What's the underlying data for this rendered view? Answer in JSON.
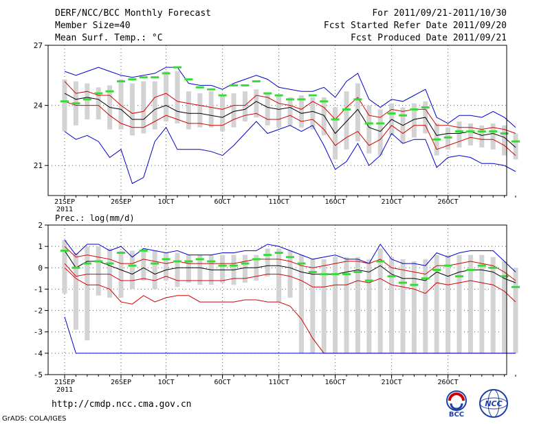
{
  "header": {
    "title": "DERF/NCC/BCC Monthly Forecast",
    "member_size": "Member Size=40",
    "variable": "Mean Surf. Temp.: °C",
    "period": "For 2011/09/21-2011/10/30",
    "started": "Fcst Started Refer Date 2011/09/20",
    "produced": "Fcst Produced Date 2011/09/21"
  },
  "footer": {
    "url": "http://cmdp.ncc.cma.gov.cn",
    "grads": "GrADS: COLA/IGES",
    "logo_bcc": "BCC",
    "logo_ncc": "NCC"
  },
  "colors": {
    "mean": "#000000",
    "spread": "#d40000",
    "range": "#0000cc",
    "box": "#d3d3d3",
    "median": "#33dd33"
  },
  "chart_data": [
    {
      "type": "line",
      "title": "Mean Surf. Temp.: °C",
      "ylim": [
        19.5,
        27
      ],
      "yticks": [
        21,
        24,
        27
      ],
      "x_ticks": [
        {
          "day": 0,
          "label": "21SEP",
          "sub": "2011"
        },
        {
          "day": 5,
          "label": "26SEP"
        },
        {
          "day": 9,
          "label": "1OCT"
        },
        {
          "day": 14,
          "label": "6OCT"
        },
        {
          "day": 19,
          "label": "11OCT"
        },
        {
          "day": 24,
          "label": "16OCT"
        },
        {
          "day": 29,
          "label": "21OCT"
        },
        {
          "day": 34,
          "label": "26OCT"
        }
      ],
      "series": [
        {
          "name": "max",
          "values": [
            25.7,
            25.5,
            25.7,
            25.9,
            25.7,
            25.5,
            25.4,
            25.5,
            25.6,
            25.9,
            25.9,
            25.1,
            25.0,
            25.0,
            24.8,
            25.1,
            25.3,
            25.5,
            25.3,
            24.9,
            24.8,
            24.7,
            24.7,
            24.9,
            24.4,
            25.2,
            25.6,
            24.3,
            23.9,
            24.3,
            24.2,
            24.5,
            24.8,
            23.4,
            23.1,
            23.5,
            23.5,
            23.4,
            23.7,
            23.4,
            22.9
          ]
        },
        {
          "name": "upper",
          "values": [
            25.2,
            24.6,
            24.7,
            24.5,
            24.5,
            24.0,
            23.6,
            23.7,
            24.4,
            24.6,
            24.2,
            24.1,
            24.0,
            23.9,
            23.8,
            24.0,
            24.0,
            24.5,
            24.4,
            24.1,
            24.0,
            23.8,
            24.2,
            23.9,
            23.3,
            23.9,
            24.4,
            23.5,
            23.4,
            23.8,
            23.7,
            23.8,
            23.8,
            23.0,
            23.0,
            22.9,
            22.9,
            22.8,
            22.9,
            22.8,
            22.6
          ]
        },
        {
          "name": "mean",
          "values": [
            24.6,
            24.3,
            24.4,
            24.3,
            23.9,
            23.8,
            23.3,
            23.3,
            23.8,
            24.0,
            23.7,
            23.6,
            23.6,
            23.5,
            23.4,
            23.7,
            23.8,
            24.2,
            23.9,
            23.8,
            23.9,
            23.6,
            23.7,
            23.5,
            22.6,
            23.2,
            23.8,
            22.9,
            22.7,
            23.3,
            23.0,
            23.3,
            23.4,
            22.5,
            22.6,
            22.6,
            22.7,
            22.5,
            22.6,
            22.4,
            21.9
          ]
        },
        {
          "name": "lower",
          "values": [
            24.2,
            24.0,
            24.0,
            24.0,
            23.5,
            23.1,
            22.9,
            22.9,
            23.2,
            23.5,
            23.3,
            23.1,
            23.1,
            23.0,
            23.0,
            23.3,
            23.5,
            23.6,
            23.3,
            23.3,
            23.5,
            23.2,
            23.3,
            22.8,
            22.0,
            22.4,
            22.7,
            22.0,
            22.3,
            23.0,
            22.6,
            23.0,
            23.0,
            21.8,
            22.0,
            22.2,
            22.4,
            22.3,
            22.3,
            22.0,
            21.5
          ]
        },
        {
          "name": "min",
          "values": [
            22.7,
            22.3,
            22.5,
            22.2,
            21.4,
            21.8,
            20.1,
            20.4,
            22.2,
            22.9,
            21.8,
            21.8,
            21.8,
            21.7,
            21.5,
            22.0,
            22.6,
            23.2,
            22.6,
            22.8,
            23.0,
            22.7,
            23.0,
            22.0,
            20.8,
            21.2,
            22.1,
            21.0,
            21.5,
            22.6,
            22.1,
            22.3,
            22.3,
            20.9,
            21.4,
            21.5,
            21.4,
            21.1,
            21.1,
            21.0,
            20.7
          ]
        }
      ],
      "box_low": [
        22.7,
        23.0,
        23.3,
        23.3,
        22.8,
        22.8,
        22.5,
        22.6,
        22.8,
        23.2,
        23.1,
        22.8,
        22.9,
        22.9,
        22.7,
        22.9,
        23.2,
        23.4,
        23.0,
        22.9,
        23.0,
        22.9,
        22.8,
        22.5,
        21.3,
        21.8,
        22.2,
        21.6,
        21.5,
        22.5,
        22.1,
        22.4,
        22.6,
        21.5,
        21.8,
        21.9,
        22.0,
        21.9,
        21.8,
        21.5,
        21.3
      ],
      "box_high": [
        25.3,
        25.2,
        25.1,
        24.9,
        25.0,
        25.3,
        25.1,
        25.2,
        25.2,
        25.7,
        25.7,
        24.7,
        24.6,
        24.7,
        24.5,
        24.6,
        24.7,
        24.8,
        24.6,
        24.5,
        24.4,
        24.5,
        24.4,
        24.4,
        23.9,
        24.7,
        25.1,
        24.0,
        23.8,
        24.1,
        23.9,
        24.1,
        24.2,
        23.1,
        22.9,
        23.2,
        23.1,
        23.0,
        23.1,
        23.0,
        22.6
      ],
      "median": [
        24.2,
        24.1,
        24.3,
        24.6,
        24.7,
        25.2,
        25.3,
        25.4,
        25.4,
        25.6,
        25.9,
        25.3,
        24.9,
        24.8,
        24.5,
        25.0,
        25.0,
        25.2,
        24.6,
        24.5,
        24.3,
        24.3,
        24.5,
        24.2,
        23.3,
        23.8,
        24.3,
        23.1,
        23.1,
        23.6,
        23.5,
        23.8,
        23.9,
        22.3,
        22.4,
        22.7,
        22.7,
        22.7,
        22.7,
        22.6,
        22.2
      ]
    },
    {
      "type": "line",
      "title": "Prec.: log(mm/d)",
      "ylim": [
        -5,
        2
      ],
      "yticks": [
        -5,
        -4,
        -3,
        -2,
        -1,
        0,
        1,
        2
      ],
      "x_ticks": [
        {
          "day": 0,
          "label": "21SEP",
          "sub": "2011"
        },
        {
          "day": 5,
          "label": "26SEP"
        },
        {
          "day": 9,
          "label": "1OCT"
        },
        {
          "day": 14,
          "label": "6OCT"
        },
        {
          "day": 19,
          "label": "11OCT"
        },
        {
          "day": 24,
          "label": "16OCT"
        },
        {
          "day": 29,
          "label": "21OCT"
        },
        {
          "day": 34,
          "label": "26OCT"
        }
      ],
      "series": [
        {
          "name": "max",
          "values": [
            1.3,
            0.6,
            1.1,
            1.1,
            0.8,
            1.0,
            0.5,
            0.9,
            0.8,
            0.7,
            0.8,
            0.6,
            0.6,
            0.6,
            0.7,
            0.7,
            0.8,
            0.8,
            1.1,
            1.0,
            0.8,
            0.6,
            0.4,
            0.5,
            0.6,
            0.4,
            0.4,
            0.2,
            1.1,
            0.4,
            0.2,
            0.2,
            0.1,
            0.7,
            0.5,
            0.7,
            0.8,
            0.8,
            0.8,
            0.3,
            -0.2
          ]
        },
        {
          "name": "upper",
          "values": [
            1.0,
            0.5,
            0.6,
            0.5,
            0.4,
            0.2,
            0.2,
            0.4,
            0.3,
            0.2,
            0.3,
            0.2,
            0.2,
            0.2,
            0.2,
            0.2,
            0.3,
            0.4,
            0.4,
            0.4,
            0.3,
            0.1,
            0.0,
            0.1,
            0.2,
            0.3,
            0.3,
            0.2,
            0.4,
            0.0,
            -0.1,
            -0.2,
            -0.3,
            0.1,
            0.1,
            0.2,
            0.3,
            0.2,
            0.1,
            -0.2,
            -0.6
          ]
        },
        {
          "name": "mean",
          "values": [
            0.8,
            0.0,
            0.3,
            0.3,
            0.1,
            -0.1,
            -0.3,
            0.0,
            -0.3,
            -0.1,
            0.0,
            0.0,
            0.0,
            -0.1,
            -0.1,
            -0.1,
            0.0,
            0.0,
            0.1,
            0.1,
            0.0,
            -0.2,
            -0.3,
            -0.3,
            -0.3,
            -0.2,
            -0.1,
            -0.2,
            0.1,
            -0.3,
            -0.5,
            -0.5,
            -0.6,
            -0.2,
            -0.4,
            -0.2,
            -0.1,
            -0.1,
            -0.2,
            -0.5,
            -0.7
          ]
        },
        {
          "name": "lower",
          "values": [
            0.2,
            -0.4,
            -0.3,
            -0.3,
            -0.3,
            -0.6,
            -0.6,
            -0.5,
            -0.6,
            -0.4,
            -0.6,
            -0.6,
            -0.6,
            -0.6,
            -0.6,
            -0.5,
            -0.5,
            -0.4,
            -0.3,
            -0.3,
            -0.4,
            -0.6,
            -0.9,
            -0.9,
            -0.8,
            -0.8,
            -0.6,
            -0.7,
            -0.5,
            -0.8,
            -0.9,
            -1.0,
            -1.2,
            -0.7,
            -0.8,
            -0.7,
            -0.6,
            -0.7,
            -0.8,
            -1.1,
            -1.6
          ]
        },
        {
          "name": "p10",
          "values": [
            0.0,
            -0.5,
            -0.8,
            -0.8,
            -1.0,
            -1.6,
            -1.7,
            -1.3,
            -1.6,
            -1.4,
            -1.3,
            -1.3,
            -1.6,
            -1.6,
            -1.6,
            -1.6,
            -1.5,
            -1.5,
            -1.6,
            -1.6,
            -1.8,
            -2.4,
            -3.3,
            -4.0,
            -4.0,
            -4.0,
            -4.0,
            -4.0,
            -4.0,
            -4.0,
            -4.0,
            -4.0,
            -4.0,
            -4.0,
            -4.0,
            -4.0,
            -4.0,
            -4.0,
            -4.0,
            -4.0,
            -4.0
          ]
        },
        {
          "name": "min",
          "values": [
            -2.3,
            -4.0,
            -4.0,
            -4.0,
            -4.0,
            -4.0,
            -4.0,
            -4.0,
            -4.0,
            -4.0,
            -4.0,
            -4.0,
            -4.0,
            -4.0,
            -4.0,
            -4.0,
            -4.0,
            -4.0,
            -4.0,
            -4.0,
            -4.0,
            -4.0,
            -4.0,
            -4.0,
            -4.0,
            -4.0,
            -4.0,
            -4.0,
            -4.0,
            -4.0,
            -4.0,
            -4.0,
            -4.0,
            -4.0,
            -4.0,
            -4.0,
            -4.0,
            -4.0,
            -4.0,
            -4.0,
            -4.0
          ]
        }
      ],
      "box_low": [
        -1.2,
        -2.9,
        -3.4,
        -1.3,
        -1.4,
        -1.4,
        -1.0,
        -0.6,
        -1.0,
        -0.6,
        -0.9,
        -0.7,
        -0.8,
        -0.8,
        -0.7,
        -0.8,
        -0.7,
        -0.6,
        -0.4,
        -1.6,
        -1.4,
        -4.0,
        -4.0,
        -4.0,
        -4.0,
        -4.0,
        -4.0,
        -4.0,
        -4.0,
        -4.0,
        -4.0,
        -4.0,
        -4.0,
        -4.0,
        -4.0,
        -4.0,
        -4.0,
        -4.0,
        -4.0,
        -4.0,
        -4.0
      ],
      "box_high": [
        1.3,
        0.7,
        1.0,
        1.0,
        0.9,
        0.8,
        0.8,
        0.9,
        0.8,
        0.7,
        0.7,
        0.6,
        0.6,
        0.6,
        0.6,
        0.6,
        0.6,
        0.6,
        0.9,
        0.9,
        0.8,
        0.6,
        0.4,
        0.4,
        0.5,
        0.5,
        0.5,
        0.4,
        0.9,
        0.5,
        0.4,
        0.3,
        0.4,
        0.6,
        0.6,
        0.6,
        0.6,
        0.6,
        0.5,
        0.3,
        0.0
      ],
      "median": [
        0.8,
        0.0,
        0.2,
        0.3,
        0.2,
        0.7,
        0.1,
        0.8,
        0.2,
        0.4,
        0.3,
        0.3,
        0.4,
        0.3,
        0.1,
        0.1,
        0.2,
        0.4,
        0.6,
        0.7,
        0.5,
        0.2,
        -0.2,
        -0.3,
        -0.3,
        -0.3,
        -0.2,
        -0.6,
        0.3,
        -0.4,
        -0.7,
        -0.8,
        -0.5,
        -0.1,
        0.1,
        -0.4,
        -0.1,
        0.1,
        0.0,
        -0.4,
        -0.9
      ]
    }
  ]
}
